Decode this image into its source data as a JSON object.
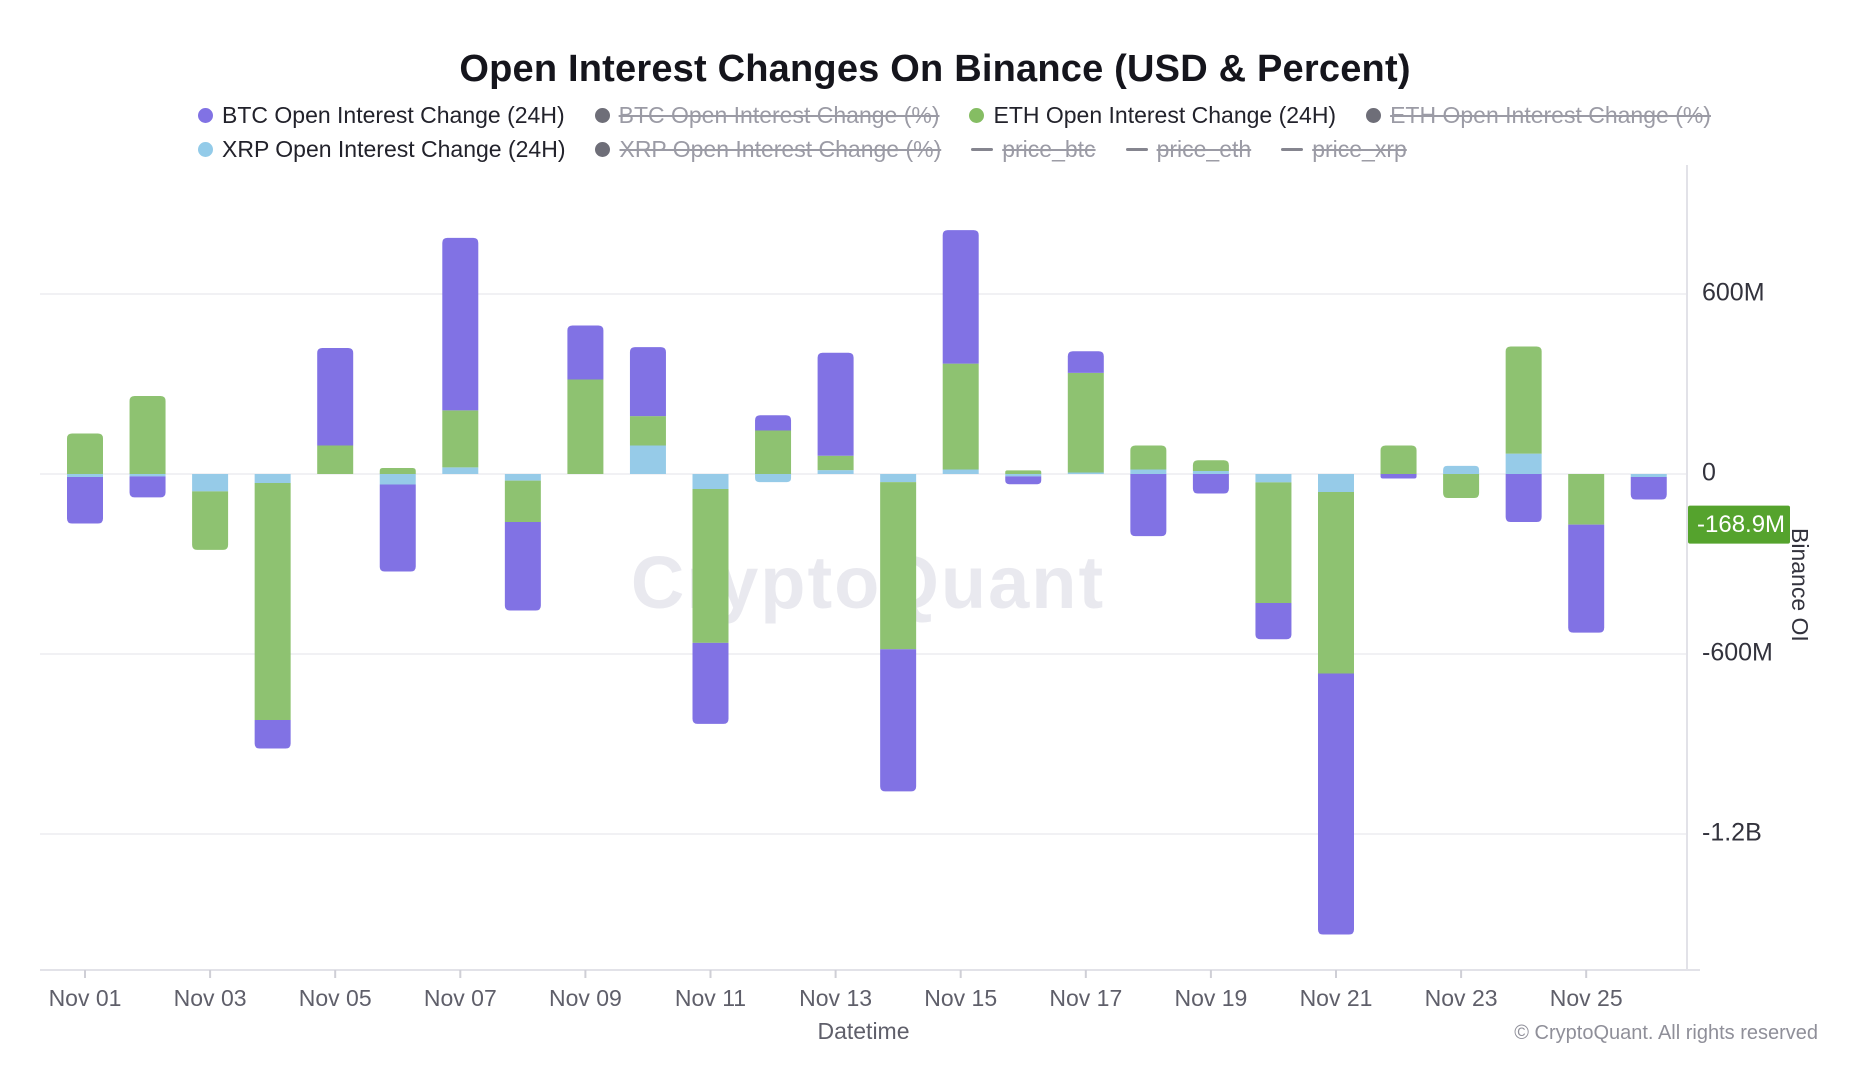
{
  "title": "Open Interest Changes On Binance (USD & Percent)",
  "legend": {
    "rows": [
      [
        {
          "label": "BTC Open Interest Change (24H)",
          "marker": "circle",
          "color": "#8172e4",
          "disabled": false
        },
        {
          "label": "BTC Open Interest Change (%)",
          "marker": "circle",
          "color": "#6e6e78",
          "disabled": true
        },
        {
          "label": "ETH Open Interest Change (24H)",
          "marker": "circle",
          "color": "#85bd63",
          "disabled": false
        },
        {
          "label": "ETH Open Interest Change (%)",
          "marker": "circle",
          "color": "#6e6e78",
          "disabled": true
        }
      ],
      [
        {
          "label": "XRP Open Interest Change (24H)",
          "marker": "circle",
          "color": "#93cbe9",
          "disabled": false
        },
        {
          "label": "XRP Open Interest Change (%)",
          "marker": "circle",
          "color": "#6e6e78",
          "disabled": true
        },
        {
          "label": "price_btc",
          "marker": "line",
          "color": "#85858f",
          "disabled": true
        },
        {
          "label": "price_eth",
          "marker": "line",
          "color": "#85858f",
          "disabled": true
        },
        {
          "label": "price_xrp",
          "marker": "line",
          "color": "#85858f",
          "disabled": true
        }
      ]
    ]
  },
  "y_axis": {
    "name": "Binance OI",
    "ticks": [
      {
        "label": "600M",
        "value": 600
      },
      {
        "label": "0",
        "value": 0
      },
      {
        "label": "-600M",
        "value": -600
      },
      {
        "label": "-1.2B",
        "value": -1200
      }
    ],
    "badge": {
      "label": "-168.9M",
      "value": -168.9,
      "color": "#55a32d",
      "text_color": "#ffffff"
    }
  },
  "x_axis": {
    "name": "Datetime",
    "tick_labels": [
      "Nov 01",
      "Nov 03",
      "Nov 05",
      "Nov 07",
      "Nov 09",
      "Nov 11",
      "Nov 13",
      "Nov 15",
      "Nov 17",
      "Nov 19",
      "Nov 21",
      "Nov 23",
      "Nov 25"
    ]
  },
  "watermark": "CryptoQuant",
  "footer": "© CryptoQuant. All rights reserved",
  "chart_data": {
    "type": "bar",
    "stacked": true,
    "units": "millions USD",
    "x": [
      "Nov 01",
      "Nov 02",
      "Nov 03",
      "Nov 04",
      "Nov 05",
      "Nov 06",
      "Nov 07",
      "Nov 08",
      "Nov 09",
      "Nov 10",
      "Nov 11",
      "Nov 12",
      "Nov 13",
      "Nov 14",
      "Nov 15",
      "Nov 16",
      "Nov 17",
      "Nov 18",
      "Nov 19",
      "Nov 20",
      "Nov 21",
      "Nov 22",
      "Nov 23",
      "Nov 24",
      "Nov 25",
      "Nov 26"
    ],
    "series": [
      {
        "key": "BTC",
        "name": "BTC Open Interest Change (24H)",
        "color": "#8172e4",
        "values": [
          -155,
          -70,
          0,
          -95,
          325,
          -290,
          575,
          -295,
          180,
          230,
          -270,
          51,
          343,
          -474,
          445,
          -26,
          72,
          -207,
          -65,
          -121,
          -870,
          -15,
          0,
          -160,
          -360,
          -75
        ]
      },
      {
        "key": "ETH",
        "name": "ETH Open Interest Change (24H)",
        "color": "#8ec271",
        "values": [
          135,
          260,
          -195,
          -790,
          95,
          20,
          190,
          -138,
          315,
          98,
          -513,
          145,
          48,
          -557,
          353,
          12,
          332,
          80,
          36,
          -402,
          -605,
          95,
          -80,
          357,
          -168.9,
          0
        ]
      },
      {
        "key": "XRP",
        "name": "XRP Open Interest Change (24H)",
        "color": "#96cbe8",
        "values": [
          -10,
          -8,
          -58,
          -30,
          0,
          -35,
          22,
          -22,
          0,
          95,
          -50,
          -27,
          13,
          -27,
          15,
          -8,
          5,
          15,
          10,
          -28,
          -60,
          0,
          27,
          68,
          0,
          -10
        ]
      }
    ],
    "disabled_series": [
      "BTC Open Interest Change (%)",
      "ETH Open Interest Change (%)",
      "XRP Open Interest Change (%)",
      "price_btc",
      "price_eth",
      "price_xrp"
    ],
    "ylabel": "Binance OI",
    "xlabel": "Datetime",
    "ylim": [
      -1400,
      1030
    ],
    "grid": true,
    "legend_position": "top",
    "latest_value_badge": {
      "series": "ETH Open Interest Change (24H)",
      "label": "-168.9M"
    },
    "layout": {
      "stack_order_from_zero": [
        "XRP",
        "ETH",
        "BTC"
      ]
    }
  }
}
